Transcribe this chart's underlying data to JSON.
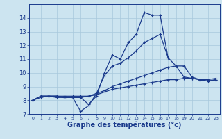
{
  "xlabel": "Graphe des températures (°c)",
  "x": [
    0,
    1,
    2,
    3,
    4,
    5,
    6,
    7,
    8,
    9,
    10,
    11,
    12,
    13,
    14,
    15,
    16,
    17,
    18,
    19,
    20,
    21,
    22,
    23
  ],
  "line1": [
    8.0,
    8.3,
    8.3,
    8.3,
    8.2,
    8.2,
    8.2,
    7.7,
    8.3,
    10.0,
    11.3,
    11.0,
    12.2,
    12.8,
    14.4,
    14.2,
    14.2,
    11.1,
    null,
    null,
    null,
    null,
    null,
    null
  ],
  "line2": [
    8.0,
    8.3,
    8.3,
    8.3,
    8.2,
    8.2,
    7.2,
    7.6,
    8.5,
    9.8,
    10.5,
    10.7,
    11.1,
    11.6,
    12.2,
    12.5,
    12.8,
    11.1,
    10.5,
    9.7,
    9.6,
    9.5,
    9.5,
    9.6
  ],
  "line3": [
    8.0,
    8.3,
    8.3,
    8.2,
    8.2,
    8.2,
    8.2,
    8.3,
    8.5,
    8.7,
    9.0,
    9.2,
    9.4,
    9.6,
    9.8,
    10.0,
    10.2,
    10.4,
    10.5,
    10.5,
    9.7,
    9.5,
    9.4,
    9.5
  ],
  "line4": [
    8.0,
    8.2,
    8.3,
    8.3,
    8.3,
    8.3,
    8.3,
    8.3,
    8.4,
    8.6,
    8.8,
    8.9,
    9.0,
    9.1,
    9.2,
    9.3,
    9.4,
    9.5,
    9.5,
    9.6,
    9.6,
    9.5,
    9.4,
    9.5
  ],
  "ylim": [
    7,
    15
  ],
  "xlim": [
    -0.5,
    23.5
  ],
  "yticks": [
    7,
    8,
    9,
    10,
    11,
    12,
    13,
    14
  ],
  "xticks": [
    0,
    1,
    2,
    3,
    4,
    5,
    6,
    7,
    8,
    9,
    10,
    11,
    12,
    13,
    14,
    15,
    16,
    17,
    18,
    19,
    20,
    21,
    22,
    23
  ],
  "line_color": "#1a3a8c",
  "bg_color": "#cce4f0",
  "grid_color": "#a8c8dc",
  "marker": "+",
  "xlabel_fontsize": 7,
  "ytick_fontsize": 6,
  "xtick_fontsize": 4.5,
  "lw": 0.9,
  "ms": 3.5
}
